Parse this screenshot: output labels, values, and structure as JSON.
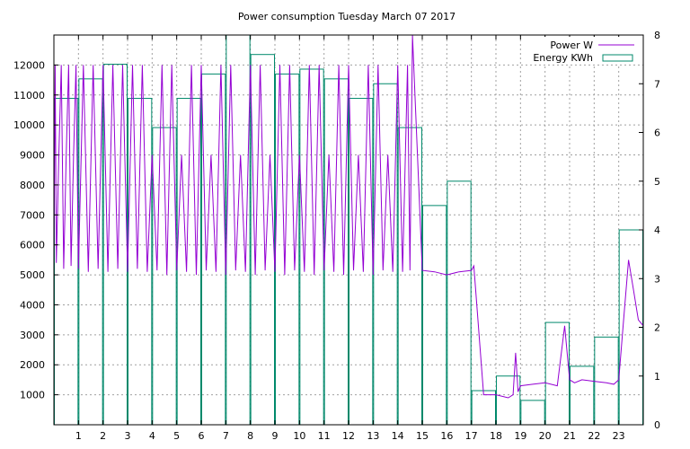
{
  "chart_data": {
    "type": "bar",
    "title": "Power consumption Tuesday March 07 2017",
    "xlabel": "",
    "ylabel": "",
    "y2label": "",
    "xlim": [
      0,
      24
    ],
    "ylim": [
      0,
      13000
    ],
    "y2lim": [
      0,
      8
    ],
    "x_ticks": [
      1,
      2,
      3,
      4,
      5,
      6,
      7,
      8,
      9,
      10,
      11,
      12,
      13,
      14,
      15,
      16,
      17,
      18,
      19,
      20,
      21,
      22,
      23
    ],
    "x_tick_labels": [
      "1",
      "2",
      "3",
      "4",
      "5",
      "6",
      "7",
      "8",
      "9",
      "10",
      "11",
      "12",
      "13",
      "14",
      "15",
      "16",
      "17",
      "18",
      "19",
      "20",
      "21",
      "22",
      "23"
    ],
    "y_ticks": [
      1000,
      2000,
      3000,
      4000,
      5000,
      6000,
      7000,
      8000,
      9000,
      10000,
      11000,
      12000
    ],
    "y_tick_labels": [
      "1000",
      "2000",
      "3000",
      "4000",
      "5000",
      "6000",
      "7000",
      "8000",
      "9000",
      "10000",
      "11000",
      "12000"
    ],
    "y2_ticks": [
      0,
      1,
      2,
      3,
      4,
      5,
      6,
      7,
      8
    ],
    "y2_tick_labels": [
      "0",
      "1",
      "2",
      "3",
      "4",
      "5",
      "6",
      "7",
      "8"
    ],
    "grid": true,
    "legend_position": "top-right",
    "series": [
      {
        "name": "Power W",
        "axis": "left",
        "color": "#9400d3",
        "style": "line",
        "x": [
          0,
          0.05,
          0.1,
          0.2,
          0.3,
          0.4,
          0.5,
          0.6,
          0.7,
          0.8,
          0.9,
          1.0,
          1.2,
          1.4,
          1.6,
          1.8,
          2.0,
          2.2,
          2.4,
          2.6,
          2.8,
          3.0,
          3.2,
          3.4,
          3.6,
          3.8,
          4.0,
          4.2,
          4.4,
          4.6,
          4.8,
          5.0,
          5.2,
          5.4,
          5.6,
          5.8,
          6.0,
          6.2,
          6.4,
          6.6,
          6.8,
          7.0,
          7.2,
          7.4,
          7.6,
          7.8,
          8.0,
          8.2,
          8.4,
          8.6,
          8.8,
          9.0,
          9.2,
          9.4,
          9.6,
          9.8,
          10.0,
          10.2,
          10.4,
          10.6,
          10.8,
          11.0,
          11.2,
          11.4,
          11.6,
          11.8,
          12.0,
          12.2,
          12.4,
          12.6,
          12.8,
          13.0,
          13.2,
          13.4,
          13.6,
          13.8,
          14.0,
          14.2,
          14.4,
          14.5,
          14.6,
          15.0,
          15.5,
          16.0,
          16.5,
          17.0,
          17.1,
          17.5,
          18.0,
          18.5,
          18.7,
          18.8,
          18.9,
          19.0,
          19.5,
          20.0,
          20.5,
          20.8,
          21.0,
          21.2,
          21.5,
          22.0,
          22.5,
          22.8,
          23.0,
          23.2,
          23.4,
          23.6,
          23.8,
          24.0
        ],
        "values": [
          5400,
          12000,
          5400,
          9000,
          12000,
          5200,
          9000,
          12000,
          5300,
          9000,
          12000,
          5200,
          12000,
          5100,
          12000,
          5200,
          12000,
          5100,
          12000,
          5200,
          12000,
          5100,
          12000,
          5200,
          12000,
          5100,
          9000,
          5150,
          12000,
          5000,
          12000,
          5150,
          9000,
          5100,
          12000,
          5000,
          12000,
          5150,
          9000,
          5100,
          12000,
          5000,
          12000,
          5150,
          9000,
          5100,
          12000,
          5000,
          12000,
          5150,
          9000,
          5100,
          12000,
          5000,
          12000,
          5150,
          9000,
          5100,
          12000,
          5000,
          12000,
          5150,
          9000,
          5100,
          12000,
          5000,
          12000,
          5150,
          9000,
          5100,
          12000,
          5000,
          12000,
          5150,
          9000,
          5100,
          12000,
          5100,
          12000,
          5150,
          13000,
          5150,
          5100,
          5000,
          5100,
          5150,
          5300,
          1000,
          1000,
          900,
          1000,
          2400,
          1100,
          1300,
          1350,
          1400,
          1300,
          3300,
          1500,
          1400,
          1500,
          1450,
          1400,
          1350,
          1500,
          3500,
          5500,
          4500,
          3500,
          3300
        ]
      },
      {
        "name": "Energy KWh",
        "axis": "right",
        "color": "#00896b",
        "style": "steps",
        "categories": [
          "0",
          "1",
          "2",
          "3",
          "4",
          "5",
          "6",
          "7",
          "8",
          "9",
          "10",
          "11",
          "12",
          "13",
          "14",
          "15",
          "16",
          "17",
          "18",
          "19",
          "20",
          "21",
          "22",
          "23"
        ],
        "values": [
          6.7,
          7.1,
          7.4,
          6.7,
          6.1,
          6.7,
          7.2,
          8.2,
          7.6,
          7.2,
          7.3,
          7.1,
          6.7,
          7.0,
          6.1,
          4.5,
          5.0,
          0.7,
          1.0,
          0.5,
          2.1,
          1.2,
          1.8,
          4.0
        ]
      }
    ]
  }
}
